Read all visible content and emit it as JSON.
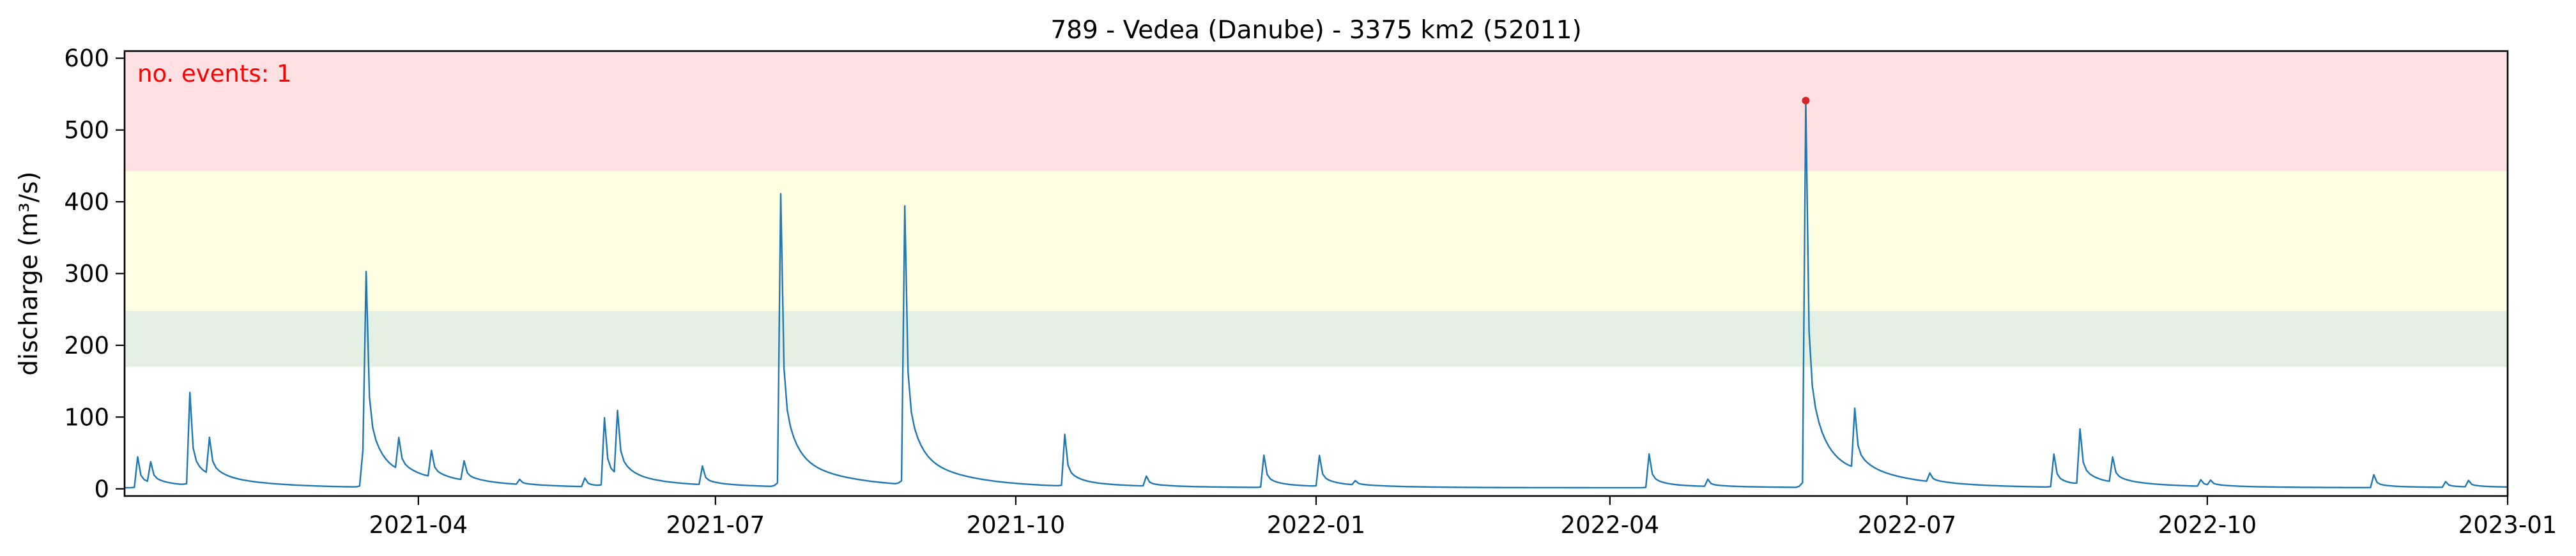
{
  "chart_data": {
    "type": "line",
    "title": "789 - Vedea (Danube) - 3375 km2 (52011)",
    "xlabel": "",
    "ylabel": "discharge (m³/s)",
    "annotation": "no. events: 1",
    "xlim": [
      "2021-01-01",
      "2023-01-01"
    ],
    "ylim": [
      -10,
      610
    ],
    "x_ticks": [
      "2021-04",
      "2021-07",
      "2021-10",
      "2022-01",
      "2022-04",
      "2022-07",
      "2022-10",
      "2023-01"
    ],
    "y_ticks": [
      0,
      100,
      200,
      300,
      400,
      500,
      600
    ],
    "grid": false,
    "bands": [
      {
        "name": "green",
        "from": 170,
        "to": 248,
        "color": "#e4f0e4"
      },
      {
        "name": "yellow",
        "from": 248,
        "to": 443,
        "color": "#fefee2"
      },
      {
        "name": "red",
        "from": 443,
        "to": 610,
        "color": "#ffe1e3"
      }
    ],
    "series": [
      {
        "color": "#1f77b4",
        "peaks": [
          {
            "date": "2021-01-05",
            "value": 43
          },
          {
            "date": "2021-01-09",
            "value": 29
          },
          {
            "date": "2021-01-21",
            "value": 129
          },
          {
            "date": "2021-01-27",
            "value": 52
          },
          {
            "date": "2021-03-15",
            "value": 48
          },
          {
            "date": "2021-03-16",
            "value": 281
          },
          {
            "date": "2021-03-26",
            "value": 45
          },
          {
            "date": "2021-04-05",
            "value": 37
          },
          {
            "date": "2021-04-15",
            "value": 27
          },
          {
            "date": "2021-05-02",
            "value": 7
          },
          {
            "date": "2021-05-22",
            "value": 12
          },
          {
            "date": "2021-05-28",
            "value": 95
          },
          {
            "date": "2021-06-01",
            "value": 90
          },
          {
            "date": "2021-06-27",
            "value": 26
          },
          {
            "date": "2021-07-21",
            "value": 408
          },
          {
            "date": "2021-08-28",
            "value": 388
          },
          {
            "date": "2021-10-16",
            "value": 72
          },
          {
            "date": "2021-11-10",
            "value": 14
          },
          {
            "date": "2021-12-16",
            "value": 45
          },
          {
            "date": "2022-01-02",
            "value": 43
          },
          {
            "date": "2022-01-13",
            "value": 6
          },
          {
            "date": "2022-04-13",
            "value": 47
          },
          {
            "date": "2022-05-01",
            "value": 10
          },
          {
            "date": "2022-05-31",
            "value": 541
          },
          {
            "date": "2022-06-15",
            "value": 84
          },
          {
            "date": "2022-07-08",
            "value": 12
          },
          {
            "date": "2022-08-15",
            "value": 46
          },
          {
            "date": "2022-08-23",
            "value": 77
          },
          {
            "date": "2022-09-02",
            "value": 35
          },
          {
            "date": "2022-09-29",
            "value": 9
          },
          {
            "date": "2022-10-02",
            "value": 7
          },
          {
            "date": "2022-11-21",
            "value": 18
          },
          {
            "date": "2022-12-13",
            "value": 8
          },
          {
            "date": "2022-12-20",
            "value": 9
          }
        ]
      }
    ],
    "events": [
      {
        "date": "2022-05-31",
        "value": 541,
        "color": "#d62728"
      }
    ],
    "annotation_color": "#ff0000",
    "axis_color": "#000000"
  }
}
